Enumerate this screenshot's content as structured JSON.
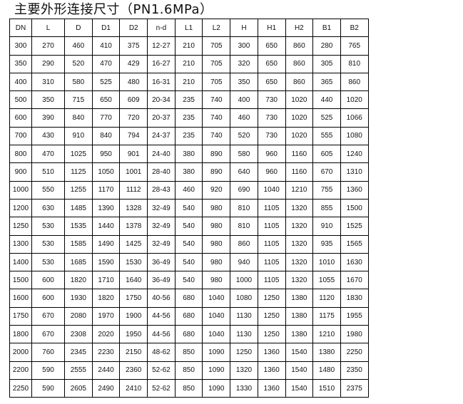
{
  "title": "主要外形连接尺寸（PN1.6MPa）",
  "table": {
    "headers": [
      "DN",
      "L",
      "D",
      "D1",
      "D2",
      "n-d",
      "L1",
      "L2",
      "H",
      "H1",
      "H2",
      "B1",
      "B2"
    ],
    "rows": [
      [
        "300",
        "270",
        "460",
        "410",
        "375",
        "12-27",
        "210",
        "705",
        "300",
        "650",
        "860",
        "280",
        "765"
      ],
      [
        "350",
        "290",
        "520",
        "470",
        "429",
        "16-27",
        "210",
        "705",
        "320",
        "650",
        "860",
        "305",
        "810"
      ],
      [
        "400",
        "310",
        "580",
        "525",
        "480",
        "16-31",
        "210",
        "705",
        "350",
        "650",
        "860",
        "365",
        "860"
      ],
      [
        "500",
        "350",
        "715",
        "650",
        "609",
        "20-34",
        "235",
        "740",
        "400",
        "730",
        "1020",
        "440",
        "1020"
      ],
      [
        "600",
        "390",
        "840",
        "770",
        "720",
        "20-37",
        "235",
        "740",
        "460",
        "730",
        "1020",
        "525",
        "1066"
      ],
      [
        "700",
        "430",
        "910",
        "840",
        "794",
        "24-37",
        "235",
        "740",
        "520",
        "730",
        "1020",
        "555",
        "1080"
      ],
      [
        "800",
        "470",
        "1025",
        "950",
        "901",
        "24-40",
        "380",
        "890",
        "580",
        "960",
        "1160",
        "605",
        "1240"
      ],
      [
        "900",
        "510",
        "1125",
        "1050",
        "1001",
        "28-40",
        "380",
        "890",
        "640",
        "960",
        "1160",
        "670",
        "1310"
      ],
      [
        "1000",
        "550",
        "1255",
        "1170",
        "1112",
        "28-43",
        "460",
        "920",
        "690",
        "1040",
        "1210",
        "755",
        "1360"
      ],
      [
        "1200",
        "630",
        "1485",
        "1390",
        "1328",
        "32-49",
        "540",
        "980",
        "810",
        "1105",
        "1320",
        "855",
        "1500"
      ],
      [
        "1250",
        "530",
        "1535",
        "1440",
        "1378",
        "32-49",
        "540",
        "980",
        "810",
        "1105",
        "1320",
        "910",
        "1525"
      ],
      [
        "1300",
        "530",
        "1585",
        "1490",
        "1425",
        "32-49",
        "540",
        "980",
        "860",
        "1105",
        "1320",
        "935",
        "1565"
      ],
      [
        "1400",
        "530",
        "1685",
        "1590",
        "1530",
        "36-49",
        "540",
        "980",
        "940",
        "1105",
        "1320",
        "1010",
        "1630"
      ],
      [
        "1500",
        "600",
        "1820",
        "1710",
        "1640",
        "36-49",
        "540",
        "980",
        "1000",
        "1105",
        "1320",
        "1055",
        "1670"
      ],
      [
        "1600",
        "600",
        "1930",
        "1820",
        "1750",
        "40-56",
        "680",
        "1040",
        "1080",
        "1250",
        "1380",
        "1120",
        "1830"
      ],
      [
        "1750",
        "670",
        "2080",
        "1970",
        "1900",
        "44-56",
        "680",
        "1040",
        "1130",
        "1250",
        "1380",
        "1175",
        "1955"
      ],
      [
        "1800",
        "670",
        "2308",
        "2020",
        "1950",
        "44-56",
        "680",
        "1040",
        "1130",
        "1250",
        "1380",
        "1210",
        "1980"
      ],
      [
        "2000",
        "760",
        "2345",
        "2230",
        "2150",
        "48-62",
        "850",
        "1090",
        "1250",
        "1360",
        "1540",
        "1380",
        "2250"
      ],
      [
        "2200",
        "590",
        "2555",
        "2440",
        "2360",
        "52-62",
        "850",
        "1090",
        "1320",
        "1360",
        "1540",
        "1480",
        "2350"
      ],
      [
        "2250",
        "590",
        "2605",
        "2490",
        "2410",
        "52-62",
        "850",
        "1090",
        "1330",
        "1360",
        "1540",
        "1510",
        "2375"
      ]
    ]
  }
}
